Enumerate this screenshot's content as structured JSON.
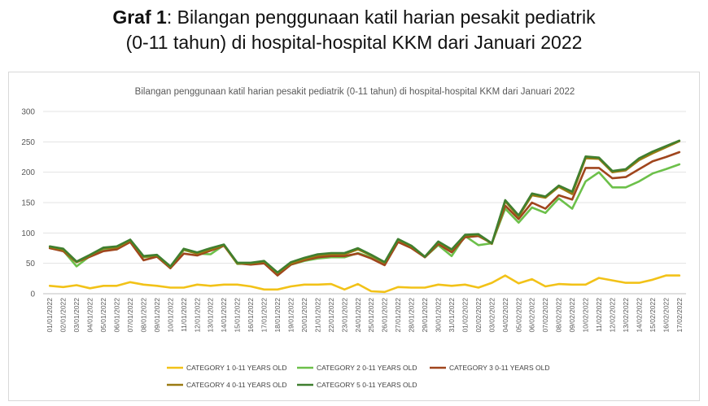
{
  "heading": {
    "line1_bold": "Graf 1",
    "line1_rest": ": Bilangan penggunaan katil harian pesakit pediatrik",
    "line2": "(0-11 tahun) di hospital-hospital KKM dari Januari 2022"
  },
  "chart_data": {
    "type": "line",
    "title": "Bilangan penggunaan katil harian pesakit pediatrik (0-11 tahun) di hospital-hospital KKM dari Januari 2022",
    "xlabel": "",
    "ylabel": "",
    "ylim": [
      0,
      300
    ],
    "yticks": [
      0,
      50,
      100,
      150,
      200,
      250,
      300
    ],
    "grid": "horizontal",
    "legend_position": "bottom",
    "categories": [
      "01/01/2022",
      "02/01/2022",
      "03/01/2022",
      "04/01/2022",
      "05/01/2022",
      "06/01/2022",
      "07/01/2022",
      "08/01/2022",
      "09/01/2022",
      "10/01/2022",
      "11/01/2022",
      "12/01/2022",
      "13/01/2022",
      "14/01/2022",
      "15/01/2022",
      "16/01/2022",
      "17/01/2022",
      "18/01/2022",
      "19/01/2022",
      "20/01/2022",
      "21/01/2022",
      "22/01/2022",
      "23/01/2022",
      "24/01/2022",
      "25/01/2022",
      "26/01/2022",
      "27/01/2022",
      "28/01/2022",
      "29/01/2022",
      "30/01/2022",
      "31/01/2022",
      "01/02/2022",
      "02/02/2022",
      "03/02/2022",
      "04/02/2022",
      "05/02/2022",
      "06/02/2022",
      "07/02/2022",
      "08/02/2022",
      "09/02/2022",
      "10/02/2022",
      "11/02/2022",
      "12/02/2022",
      "13/02/2022",
      "14/02/2022",
      "15/02/2022",
      "16/02/2022",
      "17/02/2022"
    ],
    "series": [
      {
        "name": "CATEGORY 1 0-11 YEARS OLD",
        "color": "#f2c218",
        "values": [
          13,
          11,
          14,
          9,
          13,
          13,
          19,
          15,
          13,
          10,
          10,
          15,
          13,
          15,
          15,
          12,
          7,
          7,
          12,
          15,
          15,
          16,
          7,
          16,
          4,
          3,
          11,
          10,
          10,
          15,
          13,
          15,
          10,
          18,
          30,
          17,
          24,
          12,
          16,
          15,
          15,
          26,
          22,
          18,
          18,
          23,
          30,
          30
        ]
      },
      {
        "name": "CATEGORY 2 0-11 YEARS OLD",
        "color": "#6cc04a",
        "values": [
          75,
          71,
          45,
          62,
          72,
          73,
          87,
          60,
          62,
          42,
          72,
          66,
          65,
          80,
          49,
          50,
          52,
          35,
          48,
          54,
          58,
          60,
          60,
          67,
          60,
          48,
          85,
          78,
          60,
          80,
          62,
          95,
          80,
          83,
          140,
          117,
          142,
          133,
          157,
          140,
          185,
          200,
          175,
          175,
          185,
          198,
          205,
          213
        ]
      },
      {
        "name": "CATEGORY 3 0-11 YEARS OLD",
        "color": "#a0451d",
        "values": [
          75,
          70,
          52,
          61,
          70,
          73,
          85,
          55,
          61,
          42,
          66,
          63,
          71,
          79,
          50,
          48,
          50,
          30,
          48,
          55,
          60,
          62,
          62,
          66,
          58,
          47,
          85,
          75,
          60,
          82,
          68,
          93,
          95,
          83,
          145,
          123,
          150,
          140,
          162,
          155,
          207,
          207,
          190,
          192,
          205,
          218,
          225,
          233
        ]
      },
      {
        "name": "CATEGORY 4 0-11 YEARS OLD",
        "color": "#9a7b12",
        "values": [
          77,
          72,
          52,
          63,
          75,
          76,
          88,
          61,
          63,
          44,
          73,
          66,
          73,
          80,
          50,
          50,
          53,
          34,
          50,
          57,
          63,
          65,
          65,
          73,
          63,
          51,
          89,
          78,
          61,
          85,
          72,
          96,
          97,
          82,
          152,
          127,
          162,
          158,
          176,
          164,
          223,
          222,
          200,
          203,
          220,
          231,
          241,
          251
        ]
      },
      {
        "name": "CATEGORY 5 0-11 YEARS OLD",
        "color": "#3f7f2f",
        "values": [
          78,
          74,
          53,
          64,
          76,
          78,
          89,
          62,
          64,
          45,
          74,
          68,
          75,
          81,
          51,
          51,
          54,
          35,
          52,
          59,
          65,
          67,
          67,
          75,
          64,
          52,
          90,
          79,
          61,
          86,
          73,
          97,
          98,
          83,
          154,
          129,
          165,
          160,
          178,
          168,
          226,
          224,
          202,
          205,
          223,
          234,
          243,
          252
        ]
      }
    ]
  }
}
